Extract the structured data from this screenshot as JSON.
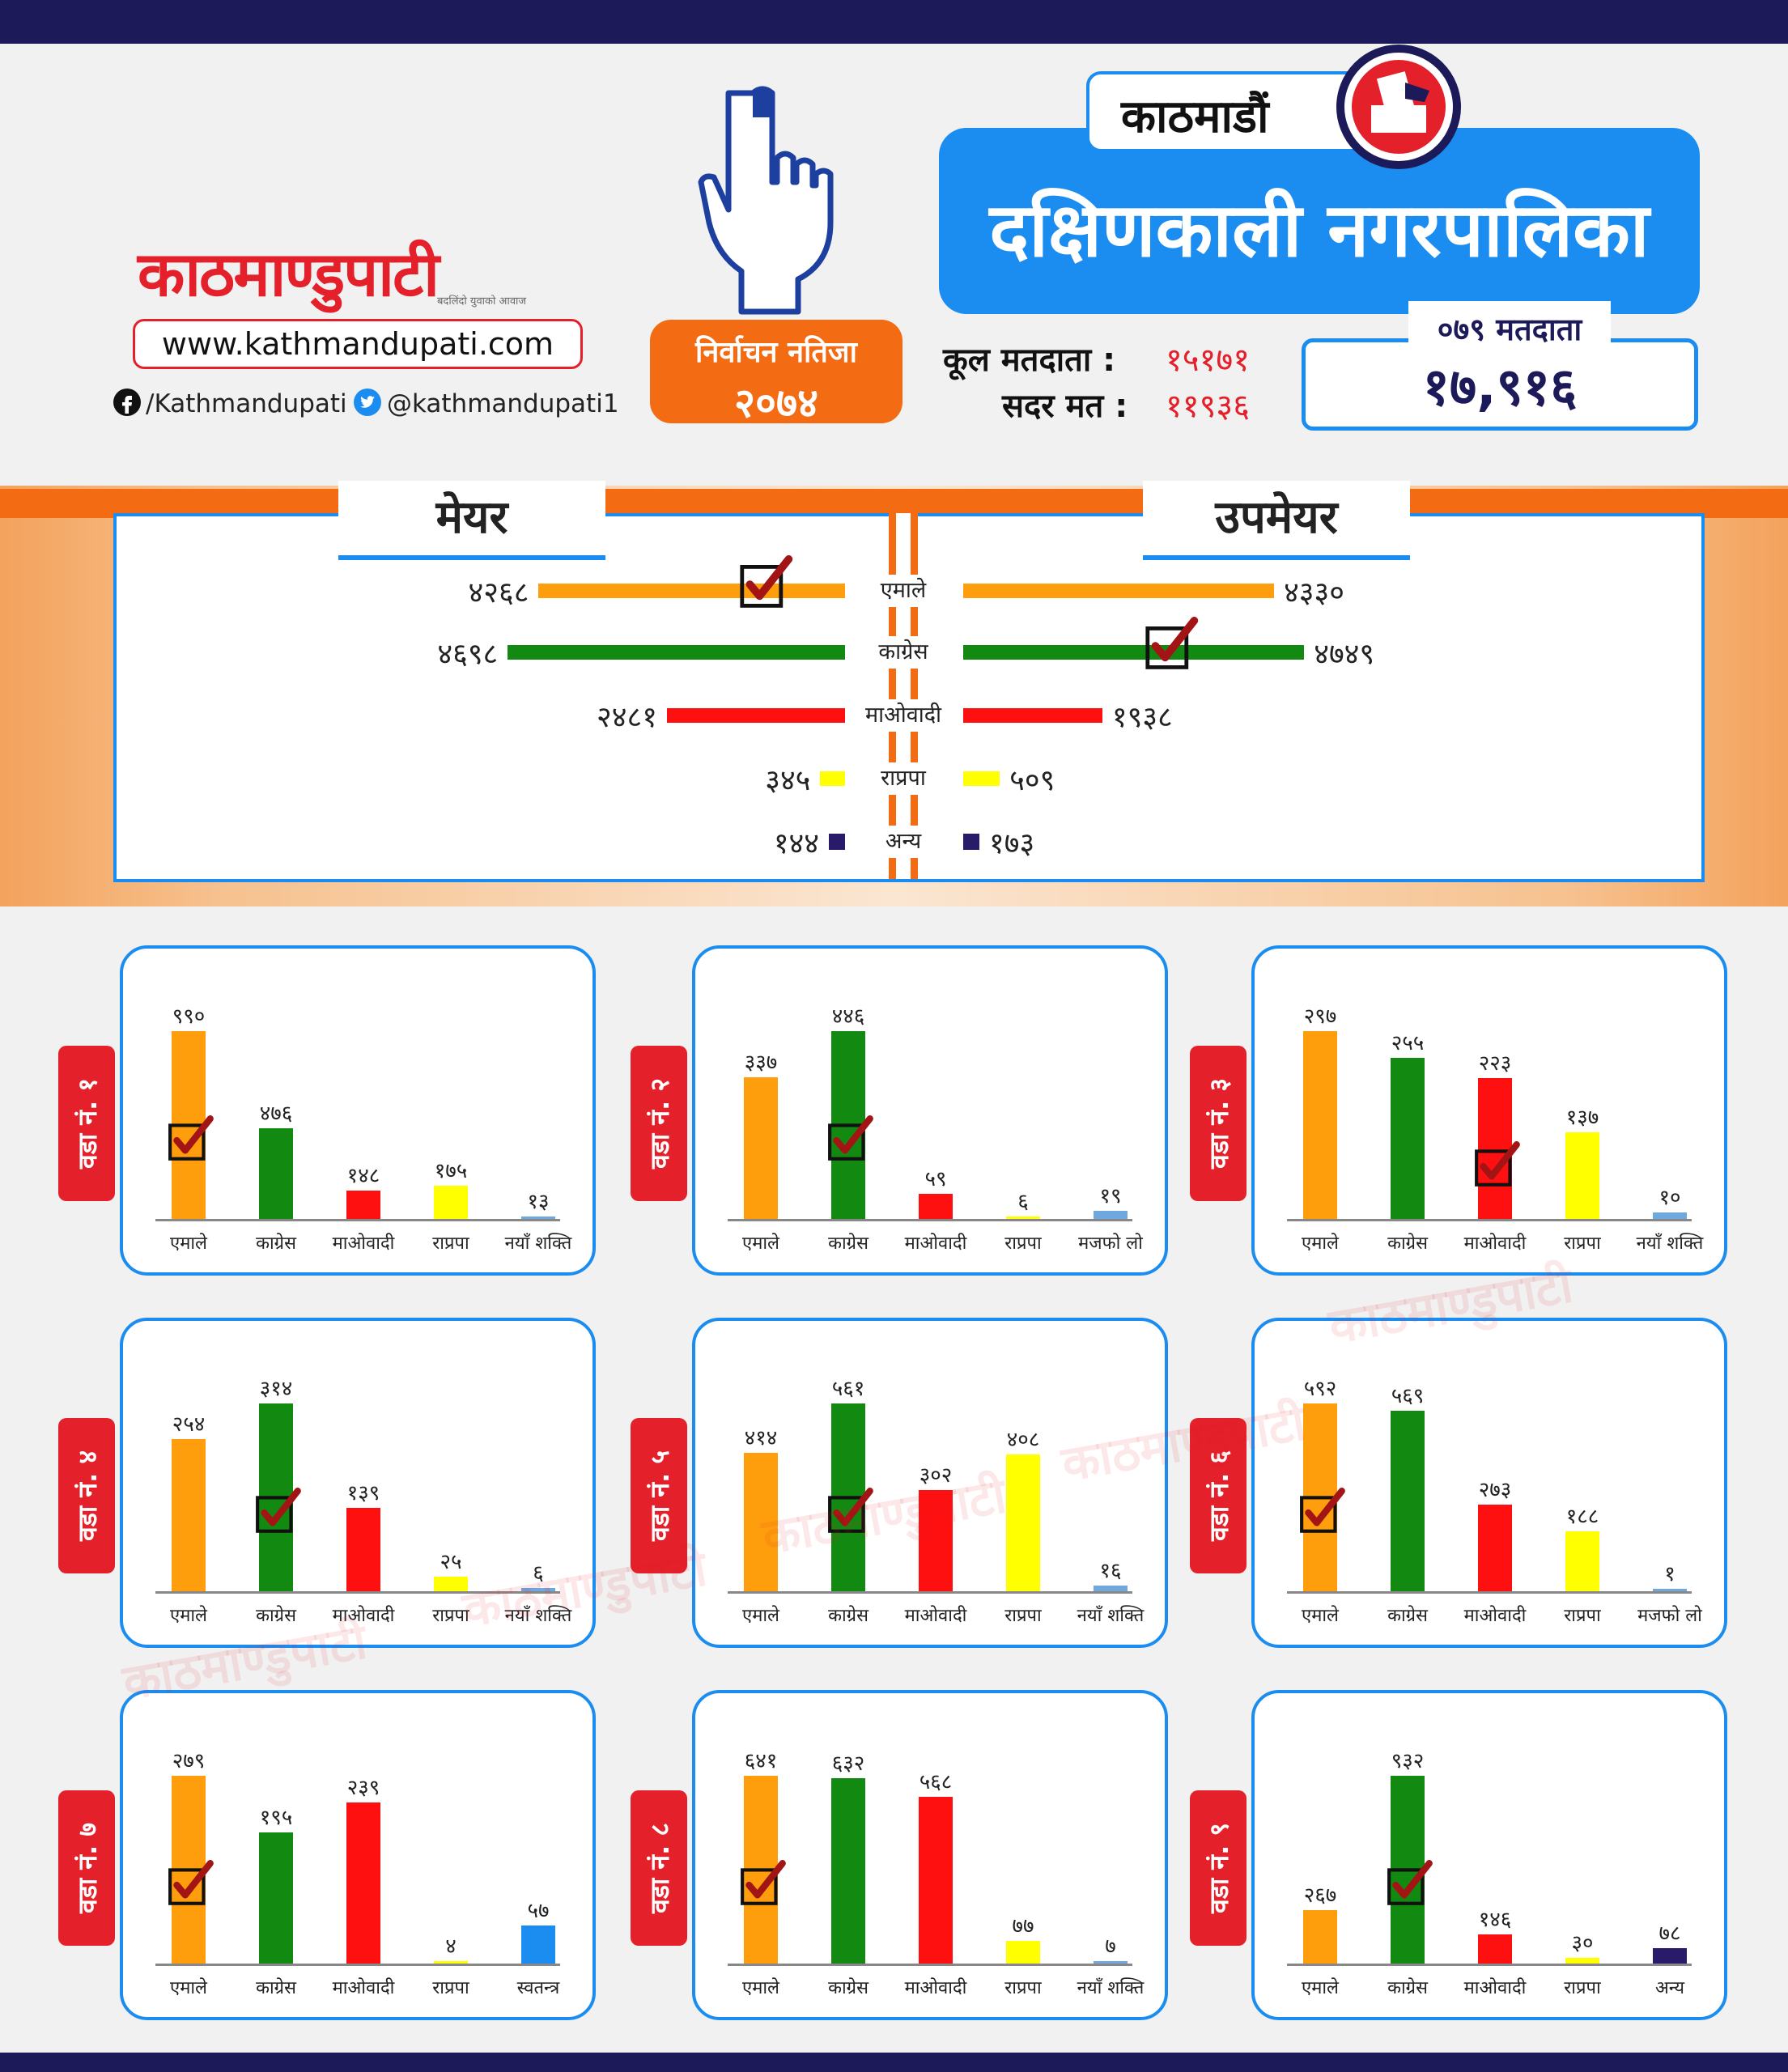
{
  "header": {
    "logo": "काठमाण्डुपाटी",
    "logo_tagline": "बदलिंदो युवाको आवाज",
    "website": "www.kathmandupati.com",
    "facebook": "/Kathmandupati",
    "twitter": "@kathmandupati1",
    "result_title": "निर्वाचन नतिजा",
    "result_year": "२०७४",
    "city": "काठमाडौं",
    "municipality": "दक्षिणकाली नगरपालिका",
    "total_voters_label": "कूल मतदाता :",
    "total_voters": "१५१७१",
    "valid_votes_label": "सदर मत :",
    "valid_votes": "११९३६",
    "voters_079_label": "०७९ मतदाता",
    "voters_079": "१७,९१६"
  },
  "colors": {
    "emale": "#ff9e0d",
    "congress": "#128a12",
    "maoist": "#ff1010",
    "rpp": "#ffff00",
    "other": "#2a1a6a",
    "naya_shakti": "#6fa8dc",
    "independent": "#1c8df0",
    "accent_blue": "#1c8df0",
    "accent_orange": "#f36b12",
    "accent_red": "#e4202a",
    "check": "#a31515"
  },
  "mayor_tab": "मेयर",
  "deputy_tab": "उपमेयर",
  "chart_data": [
    {
      "type": "bar",
      "panel": "mayor",
      "title": "मेयर",
      "categories": [
        "एमाले",
        "काग्रेस",
        "माओवादी",
        "राप्रपा",
        "अन्य"
      ],
      "values": [
        4268,
        4698,
        2481,
        345,
        144
      ],
      "value_labels": [
        "४२६८",
        "४६९८",
        "२४८१",
        "३४५",
        "१४४"
      ],
      "colors": [
        "emale",
        "congress",
        "maoist",
        "rpp",
        "other"
      ],
      "winner": 0
    },
    {
      "type": "bar",
      "panel": "deputy",
      "title": "उपमेयर",
      "categories": [
        "एमाले",
        "काग्रेस",
        "माओवादी",
        "राप्रपा",
        "अन्य"
      ],
      "values": [
        4330,
        4749,
        1938,
        509,
        173
      ],
      "value_labels": [
        "४३३०",
        "४७४९",
        "१९३८",
        "५०९",
        "१७३"
      ],
      "colors": [
        "emale",
        "congress",
        "maoist",
        "rpp",
        "other"
      ],
      "winner": 1
    },
    {
      "type": "bar",
      "ward": "वडा नं. १",
      "categories": [
        "एमाले",
        "काग्रेस",
        "माओवादी",
        "राप्रपा",
        "नयाँ शक्ति"
      ],
      "values": [
        990,
        476,
        148,
        175,
        13
      ],
      "value_labels": [
        "९९०",
        "४७६",
        "१४८",
        "१७५",
        "१३"
      ],
      "colors": [
        "emale",
        "congress",
        "maoist",
        "rpp",
        "naya_shakti"
      ],
      "winner": 0
    },
    {
      "type": "bar",
      "ward": "वडा नं. २",
      "categories": [
        "एमाले",
        "काग्रेस",
        "माओवादी",
        "राप्रपा",
        "मजफो लो"
      ],
      "values": [
        337,
        446,
        59,
        6,
        19
      ],
      "value_labels": [
        "३३७",
        "४४६",
        "५९",
        "६",
        "१९"
      ],
      "colors": [
        "emale",
        "congress",
        "maoist",
        "rpp",
        "naya_shakti"
      ],
      "winner": 1
    },
    {
      "type": "bar",
      "ward": "वडा नं. ३",
      "categories": [
        "एमाले",
        "काग्रेस",
        "माओवादी",
        "राप्रपा",
        "नयाँ शक्ति"
      ],
      "values": [
        297,
        255,
        223,
        137,
        10
      ],
      "value_labels": [
        "२९७",
        "२५५",
        "२२३",
        "१३७",
        "१०"
      ],
      "colors": [
        "emale",
        "congress",
        "maoist",
        "rpp",
        "naya_shakti"
      ],
      "winner": 2
    },
    {
      "type": "bar",
      "ward": "वडा नं. ४",
      "categories": [
        "एमाले",
        "काग्रेस",
        "माओवादी",
        "राप्रपा",
        "नयाँ शक्ति"
      ],
      "values": [
        254,
        314,
        139,
        25,
        6
      ],
      "value_labels": [
        "२५४",
        "३१४",
        "१३९",
        "२५",
        "६"
      ],
      "colors": [
        "emale",
        "congress",
        "maoist",
        "rpp",
        "naya_shakti"
      ],
      "winner": 1
    },
    {
      "type": "bar",
      "ward": "वडा नं. ५",
      "categories": [
        "एमाले",
        "काग्रेस",
        "माओवादी",
        "राप्रपा",
        "नयाँ शक्ति"
      ],
      "values": [
        414,
        561,
        302,
        408,
        16
      ],
      "value_labels": [
        "४१४",
        "५६१",
        "३०२",
        "४०८",
        "१६"
      ],
      "colors": [
        "emale",
        "congress",
        "maoist",
        "rpp",
        "naya_shakti"
      ],
      "winner": 1
    },
    {
      "type": "bar",
      "ward": "वडा नं. ६",
      "categories": [
        "एमाले",
        "काग्रेस",
        "माओवादी",
        "राप्रपा",
        "मजफो लो"
      ],
      "values": [
        592,
        569,
        273,
        188,
        1
      ],
      "value_labels": [
        "५९२",
        "५६९",
        "२७३",
        "१८८",
        "१"
      ],
      "colors": [
        "emale",
        "congress",
        "maoist",
        "rpp",
        "naya_shakti"
      ],
      "winner": 0
    },
    {
      "type": "bar",
      "ward": "वडा नं. ७",
      "categories": [
        "एमाले",
        "काग्रेस",
        "माओवादी",
        "राप्रपा",
        "स्वतन्त्र"
      ],
      "values": [
        279,
        195,
        239,
        4,
        57
      ],
      "value_labels": [
        "२७९",
        "१९५",
        "२३९",
        "४",
        "५७"
      ],
      "colors": [
        "emale",
        "congress",
        "maoist",
        "rpp",
        "independent"
      ],
      "winner": 0
    },
    {
      "type": "bar",
      "ward": "वडा नं. ८",
      "categories": [
        "एमाले",
        "काग्रेस",
        "माओवादी",
        "राप्रपा",
        "नयाँ शक्ति"
      ],
      "values": [
        641,
        632,
        568,
        77,
        7
      ],
      "value_labels": [
        "६४१",
        "६३२",
        "५६८",
        "७७",
        "७"
      ],
      "colors": [
        "emale",
        "congress",
        "maoist",
        "rpp",
        "naya_shakti"
      ],
      "winner": 0
    },
    {
      "type": "bar",
      "ward": "वडा नं. ९",
      "categories": [
        "एमाले",
        "काग्रेस",
        "माओवादी",
        "राप्रपा",
        "अन्य"
      ],
      "values": [
        267,
        932,
        146,
        30,
        78
      ],
      "value_labels": [
        "२६७",
        "९३२",
        "१४६",
        "३०",
        "७८"
      ],
      "colors": [
        "emale",
        "congress",
        "maoist",
        "rpp",
        "other"
      ],
      "winner": 1
    }
  ]
}
